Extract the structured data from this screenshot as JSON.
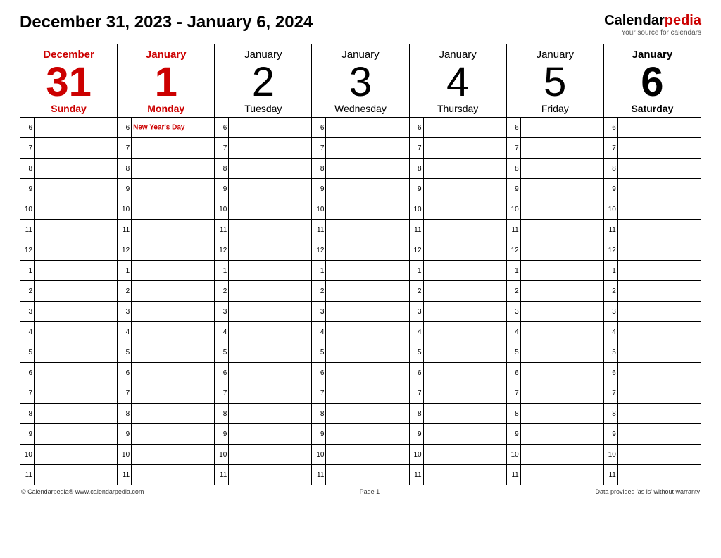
{
  "title": "December 31, 2023 - January 6, 2024",
  "brand": {
    "name1": "Calendar",
    "name2": "pedia",
    "tag": "Your source for calendars"
  },
  "hours": [
    6,
    7,
    8,
    9,
    10,
    11,
    12,
    1,
    2,
    3,
    4,
    5,
    6,
    7,
    8,
    9,
    10,
    11
  ],
  "days": [
    {
      "month": "December",
      "daynum": "31",
      "dayname": "Sunday",
      "highlight": true,
      "bold": true,
      "event": null
    },
    {
      "month": "January",
      "daynum": "1",
      "dayname": "Monday",
      "highlight": true,
      "bold": true,
      "event": "New Year's Day"
    },
    {
      "month": "January",
      "daynum": "2",
      "dayname": "Tuesday",
      "highlight": false,
      "bold": false,
      "event": null
    },
    {
      "month": "January",
      "daynum": "3",
      "dayname": "Wednesday",
      "highlight": false,
      "bold": false,
      "event": null
    },
    {
      "month": "January",
      "daynum": "4",
      "dayname": "Thursday",
      "highlight": false,
      "bold": false,
      "event": null
    },
    {
      "month": "January",
      "daynum": "5",
      "dayname": "Friday",
      "highlight": false,
      "bold": false,
      "event": null
    },
    {
      "month": "January",
      "daynum": "6",
      "dayname": "Saturday",
      "highlight": false,
      "bold": true,
      "event": null
    }
  ],
  "footer": {
    "left": "© Calendarpedia®   www.calendarpedia.com",
    "center": "Page 1",
    "right": "Data provided 'as is' without warranty"
  },
  "colors": {
    "highlight": "#cc0000",
    "border": "#000000",
    "bg": "#ffffff"
  }
}
